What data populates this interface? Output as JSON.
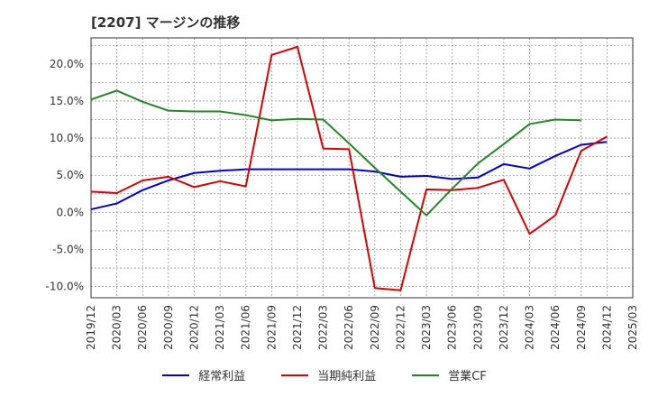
{
  "chart_data": {
    "type": "line",
    "title": "[2207]  マージンの推移",
    "xlabel": "",
    "ylabel": "",
    "ylim": [
      -11.5,
      23.5
    ],
    "yticks": [
      -10,
      -5,
      0,
      5,
      10,
      15,
      20
    ],
    "ytick_labels": [
      "-10.0%",
      "-5.0%",
      "0.0%",
      "5.0%",
      "10.0%",
      "15.0%",
      "20.0%"
    ],
    "grid": true,
    "legend_position": "bottom",
    "categories": [
      "2019/12",
      "2020/03",
      "2020/06",
      "2020/09",
      "2020/12",
      "2021/03",
      "2021/06",
      "2021/09",
      "2021/12",
      "2022/03",
      "2022/06",
      "2022/09",
      "2022/12",
      "2023/03",
      "2023/06",
      "2023/09",
      "2023/12",
      "2024/03",
      "2024/06",
      "2024/09",
      "2024/12",
      "2025/03"
    ],
    "series": [
      {
        "name": "経常利益",
        "color": "#0000dd",
        "values": [
          0.4,
          1.2,
          3.0,
          4.3,
          5.3,
          5.6,
          5.8,
          5.8,
          5.8,
          5.8,
          5.8,
          5.5,
          4.8,
          4.9,
          4.5,
          4.7,
          6.5,
          5.9,
          7.6,
          9.1,
          9.5,
          null
        ]
      },
      {
        "name": "当期純利益",
        "color": "#dd0000",
        "values": [
          2.8,
          2.6,
          4.3,
          4.8,
          3.4,
          4.2,
          3.5,
          21.2,
          22.3,
          8.6,
          8.5,
          -10.2,
          -10.5,
          3.1,
          3.0,
          3.3,
          4.4,
          -2.9,
          -0.4,
          8.3,
          10.2,
          null
        ]
      },
      {
        "name": "営業CF",
        "color": "#228822",
        "values": [
          15.2,
          16.4,
          14.9,
          13.7,
          13.6,
          13.6,
          13.1,
          12.4,
          12.6,
          12.5,
          9.3,
          6.0,
          2.8,
          -0.4,
          3.2,
          6.6,
          9.2,
          11.9,
          12.5,
          12.4,
          null,
          null
        ]
      }
    ]
  }
}
